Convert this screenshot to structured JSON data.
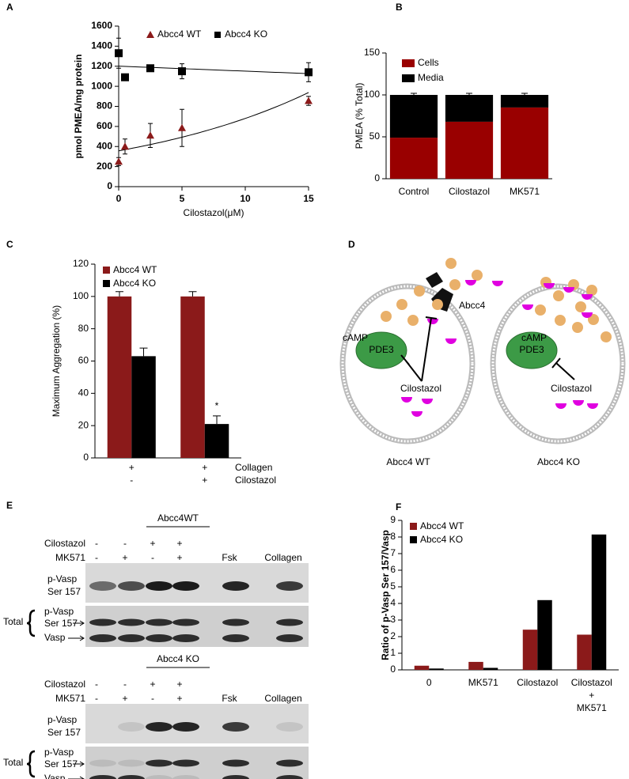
{
  "chart_data": [
    {
      "type": "scatter",
      "panel": "A",
      "x_label": "Cilostazol(μM)",
      "y_label": "pmol PMEA/mg protein",
      "legend": "top",
      "x": [
        0,
        0.5,
        2.5,
        5,
        15
      ],
      "xlim": [
        0,
        15
      ],
      "xticks": [
        0,
        5,
        10,
        15
      ],
      "ylim": [
        0,
        1600
      ],
      "yticks": [
        0,
        200,
        400,
        600,
        800,
        1000,
        1200,
        1400,
        1600
      ],
      "series": [
        {
          "name": "Abcc4 WT",
          "color": "#8b1a1a",
          "marker": "triangle",
          "fit": "exponential",
          "values": [
            250,
            400,
            510,
            585,
            855
          ],
          "errors": [
            40,
            75,
            120,
            185,
            45
          ]
        },
        {
          "name": "Abcc4 KO",
          "color": "#000000",
          "marker": "square",
          "fit": "linear",
          "values": [
            1330,
            1090,
            1180,
            1150,
            1140
          ],
          "errors": [
            150,
            20,
            20,
            75,
            95
          ]
        }
      ]
    },
    {
      "type": "stacked-bar",
      "panel": "B",
      "y_label": "PMEA (% Total)",
      "legend": "top-left",
      "categories": [
        "Control",
        "Cilostazol",
        "MK571"
      ],
      "ylim": [
        0,
        150
      ],
      "yticks": [
        0,
        50,
        100,
        150
      ],
      "series": [
        {
          "name": "Cells",
          "color": "#990000",
          "values": [
            49,
            68,
            85
          ]
        },
        {
          "name": "Media",
          "color": "#000000",
          "values": [
            51,
            32,
            15
          ]
        }
      ]
    },
    {
      "type": "grouped-bar",
      "panel": "C",
      "y_label": "Maximum Aggregation (%)",
      "legend": "top-left",
      "category_rows": [
        {
          "name": "Collagen",
          "labels": [
            "+",
            "+"
          ]
        },
        {
          "name": "Cilostazol",
          "labels": [
            "-",
            "+"
          ]
        }
      ],
      "ylim": [
        0,
        120
      ],
      "yticks": [
        0,
        20,
        40,
        60,
        80,
        100,
        120
      ],
      "series": [
        {
          "name": "Abcc4 WT",
          "color": "#8b1a1a",
          "values": [
            100,
            100
          ],
          "errors": [
            3,
            3
          ]
        },
        {
          "name": "Abcc4 KO",
          "color": "#000000",
          "values": [
            63,
            21
          ],
          "errors": [
            5,
            5
          ],
          "notes": [
            null,
            "*"
          ]
        }
      ]
    },
    {
      "type": "grouped-bar",
      "panel": "F",
      "y_label": "Ratio of p-Vasp Ser 157/Vasp",
      "legend": "top-left",
      "categories": [
        "0",
        "MK571",
        "Cilostazol",
        "Cilostazol\n+\nMK571"
      ],
      "ylim": [
        0,
        9
      ],
      "yticks": [
        0,
        1,
        2,
        3,
        4,
        5,
        6,
        7,
        8,
        9
      ],
      "series": [
        {
          "name": "Abcc4 WT",
          "color": "#8b1a1a",
          "values": [
            0.25,
            0.48,
            2.42,
            2.12
          ]
        },
        {
          "name": "Abcc4 KO",
          "color": "#000000",
          "values": [
            0.08,
            0.12,
            4.2,
            8.15
          ]
        }
      ]
    }
  ],
  "diagram": {
    "panel": "D",
    "cells": [
      {
        "caption": "Abcc4 WT",
        "messenger": "cAMP",
        "transporter": "Abcc4",
        "enzyme": "PDE3",
        "drug": "Cilostazol"
      },
      {
        "caption": "Abcc4 KO",
        "messenger": "cAMP",
        "enzyme": "PDE3",
        "drug": "Cilostazol"
      }
    ]
  },
  "blots": {
    "panel": "E",
    "items": [
      {
        "title": "Abcc4WT",
        "treatments": [
          {
            "name": "Cilostazol",
            "signs": [
              "-",
              "-",
              "+",
              "+"
            ]
          },
          {
            "name": "MK571",
            "signs": [
              "-",
              "+",
              "-",
              "+"
            ]
          }
        ],
        "controls": [
          "Fsk",
          "Collagen"
        ],
        "phospho": [
          "p-Vasp",
          "Ser 157"
        ],
        "total": "Total",
        "total_rows": [
          "p-Vasp",
          "Ser 157",
          "Vasp"
        ]
      },
      {
        "title": "Abcc4 KO",
        "treatments": [
          {
            "name": "Cilostazol",
            "signs": [
              "-",
              "-",
              "+",
              "+"
            ]
          },
          {
            "name": "MK571",
            "signs": [
              "-",
              "+",
              "-",
              "+"
            ]
          }
        ],
        "controls": [
          "Fsk",
          "Collagen"
        ],
        "phospho": [
          "p-Vasp",
          "Ser 157"
        ],
        "total": "Total",
        "total_rows": [
          "p-Vasp",
          "Ser 157",
          "Vasp"
        ]
      }
    ]
  }
}
